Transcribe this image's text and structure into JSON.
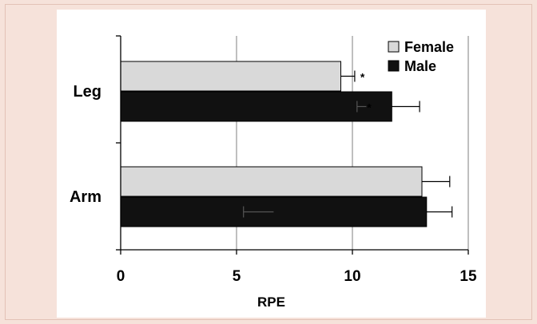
{
  "chart_data": {
    "type": "bar",
    "orientation": "horizontal",
    "categories": [
      "Leg",
      "Arm"
    ],
    "series": [
      {
        "name": "Female",
        "color": "#d9d9d9",
        "values": [
          9.5,
          13.0
        ],
        "errors": [
          0.6,
          1.2
        ]
      },
      {
        "name": "Male",
        "color": "#111111",
        "values": [
          11.7,
          13.2
        ],
        "errors": [
          1.2,
          1.1
        ]
      }
    ],
    "inner_error_bars": [
      {
        "category": "Leg",
        "series": "Male",
        "from": 10.2,
        "to": 10.6
      },
      {
        "category": "Arm",
        "series": "Male",
        "from": 5.3,
        "to": 6.6
      }
    ],
    "annotations": [
      {
        "category": "Leg",
        "series": "Female",
        "text": "*"
      },
      {
        "category": "Leg",
        "series": "Male",
        "text": "*"
      }
    ],
    "xlabel": "RPE",
    "xlim": [
      0,
      15
    ],
    "xticks": [
      "0",
      "5",
      "10",
      "15"
    ],
    "grid": "vertical",
    "legend": "top-right"
  }
}
